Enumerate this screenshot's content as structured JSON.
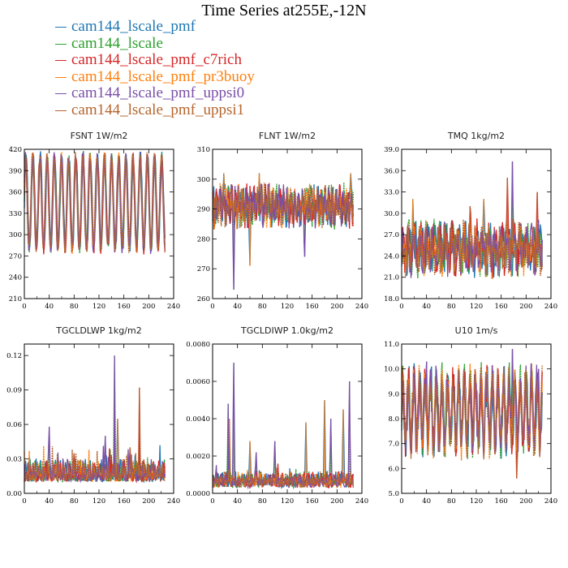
{
  "title": "Time Series at255E,-12N",
  "series": [
    {
      "name": "cam144_lscale_pmf",
      "color": "#1f77b4"
    },
    {
      "name": "cam144_lscale",
      "color": "#2ca02c"
    },
    {
      "name": "cam144_lscale_pmf_c7rich",
      "color": "#d62728"
    },
    {
      "name": "cam144_lscale_pmf_pr3buoy",
      "color": "#ff7f0e"
    },
    {
      "name": "cam144_lscale_pmf_uppsi0",
      "color": "#7b4fa8"
    },
    {
      "name": "cam144_lscale_pmf_uppsi1",
      "color": "#b5652d"
    }
  ],
  "chart_data": [
    {
      "type": "line",
      "title": "FSNT  1W/m2",
      "xlim": [
        0,
        240
      ],
      "ylim": [
        210,
        420
      ],
      "xticks": [
        "0",
        "40",
        "80",
        "120",
        "160",
        "200",
        "240"
      ],
      "yticks": [
        "210",
        "240",
        "270",
        "300",
        "330",
        "360",
        "390",
        "420"
      ],
      "mode": "osc",
      "base": 345,
      "amp": 65,
      "period": 11.5,
      "noise": 8,
      "spikes": [],
      "min_clip": 235,
      "max_clip": 418
    },
    {
      "type": "line",
      "title": "FLNT  1W/m2",
      "xlim": [
        0,
        240
      ],
      "ylim": [
        260,
        310
      ],
      "xticks": [
        "0",
        "40",
        "80",
        "120",
        "160",
        "200",
        "240"
      ],
      "yticks": [
        "260",
        "270",
        "280",
        "290",
        "300",
        "310"
      ],
      "mode": "noise",
      "base": 291,
      "amp": 5,
      "period": 6,
      "noise": 5,
      "spikes": [
        [
          34,
          263
        ],
        [
          60,
          271
        ],
        [
          18,
          302
        ],
        [
          75,
          302
        ],
        [
          148,
          274
        ],
        [
          222,
          302
        ]
      ],
      "min_clip": 263,
      "max_clip": 303
    },
    {
      "type": "line",
      "title": "TMQ  1kg/m2",
      "xlim": [
        0,
        240
      ],
      "ylim": [
        18,
        39
      ],
      "xticks": [
        "0",
        "40",
        "80",
        "120",
        "160",
        "200",
        "240"
      ],
      "yticks": [
        "18.0",
        "21.0",
        "24.0",
        "27.0",
        "30.0",
        "33.0",
        "36.0",
        "39.0"
      ],
      "mode": "noise",
      "base": 25,
      "amp": 3,
      "period": 10,
      "noise": 2.5,
      "spikes": [
        [
          178,
          37.3
        ],
        [
          170,
          35
        ],
        [
          18,
          32
        ],
        [
          132,
          32
        ],
        [
          218,
          33
        ],
        [
          110,
          31
        ]
      ],
      "min_clip": 19,
      "max_clip": 37.3
    },
    {
      "type": "line",
      "title": "TGCLDLWP  1kg/m2",
      "xlim": [
        0,
        240
      ],
      "ylim": [
        0,
        0.13
      ],
      "xticks": [
        "0",
        "40",
        "80",
        "120",
        "160",
        "200",
        "240"
      ],
      "yticks": [
        "0.00",
        "0.03",
        "0.06",
        "0.09",
        "0.12"
      ],
      "mode": "spiky",
      "base": 0.01,
      "amp": 0.012,
      "period": 8,
      "noise": 0.008,
      "spikes": [
        [
          145,
          0.12
        ],
        [
          185,
          0.092
        ],
        [
          40,
          0.058
        ],
        [
          130,
          0.05
        ],
        [
          150,
          0.065
        ],
        [
          80,
          0.035
        ],
        [
          170,
          0.04
        ]
      ],
      "min_clip": 0,
      "max_clip": 0.121
    },
    {
      "type": "line",
      "title": "TGCLDIWP  1.0kg/m2",
      "xlim": [
        0,
        240
      ],
      "ylim": [
        0,
        0.008
      ],
      "xticks": [
        "0",
        "40",
        "80",
        "120",
        "160",
        "200",
        "240"
      ],
      "yticks": [
        "0.0000",
        "0.0020",
        "0.0040",
        "0.0060",
        "0.0080"
      ],
      "mode": "spiky",
      "base": 0.0003,
      "amp": 0.0004,
      "period": 7,
      "noise": 0.0005,
      "spikes": [
        [
          34,
          0.007
        ],
        [
          25,
          0.0048
        ],
        [
          27,
          0.004
        ],
        [
          60,
          0.0028
        ],
        [
          100,
          0.0028
        ],
        [
          150,
          0.0038
        ],
        [
          180,
          0.005
        ],
        [
          190,
          0.004
        ],
        [
          220,
          0.006
        ],
        [
          210,
          0.0045
        ],
        [
          70,
          0.0022
        ]
      ],
      "min_clip": 0,
      "max_clip": 0.007
    },
    {
      "type": "line",
      "title": "U10  1m/s",
      "xlim": [
        0,
        240
      ],
      "ylim": [
        5.0,
        11.0
      ],
      "xticks": [
        "0",
        "40",
        "80",
        "120",
        "160",
        "200",
        "240"
      ],
      "yticks": [
        "5.0",
        "6.0",
        "7.0",
        "8.0",
        "9.0",
        "10.0",
        "11.0"
      ],
      "mode": "osc",
      "base": 8.3,
      "amp": 1.2,
      "period": 9,
      "noise": 0.8,
      "spikes": [
        [
          178,
          10.8
        ],
        [
          40,
          10.3
        ],
        [
          185,
          5.6
        ],
        [
          220,
          10
        ]
      ],
      "min_clip": 5.5,
      "max_clip": 10.8
    }
  ]
}
